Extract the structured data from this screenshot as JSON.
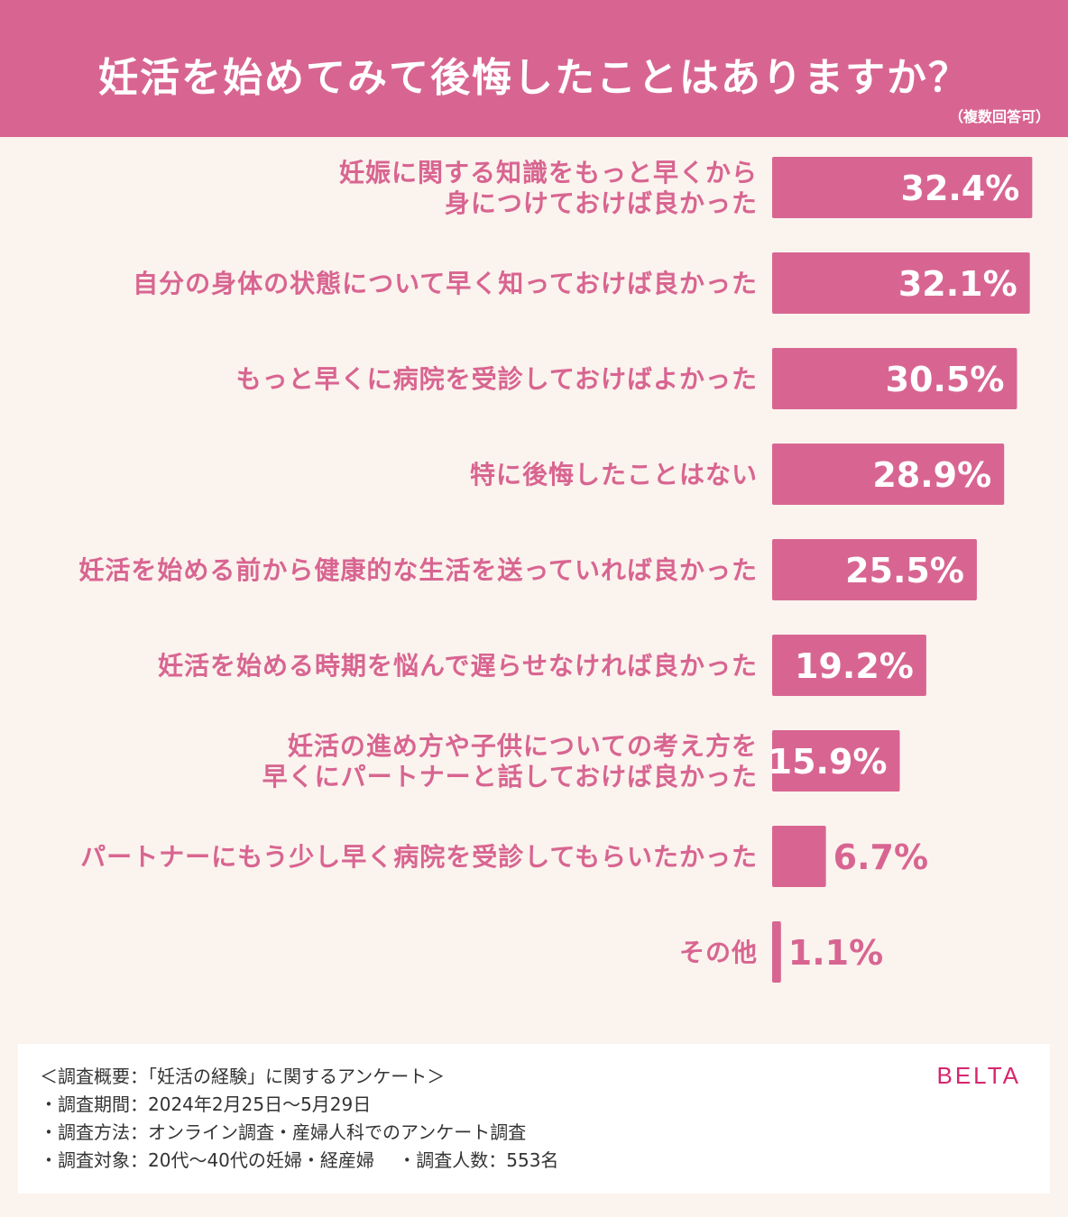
{
  "header": {
    "title": "妊活を始めてみて後悔したことはありますか？",
    "note": "（複数回答可）"
  },
  "chart_data": {
    "type": "bar",
    "orientation": "horizontal",
    "title": "妊活を始めてみて後悔したことはありますか？",
    "categories": [
      [
        "妊娠に関する知識をもっと早くから",
        "身につけておけば良かった"
      ],
      [
        "自分の身体の状態について早く知っておけば良かった"
      ],
      [
        "もっと早くに病院を受診しておけばよかった"
      ],
      [
        "特に後悔したことはない"
      ],
      [
        "妊活を始める前から健康的な生活を送っていれば良かった"
      ],
      [
        "妊活を始める時期を悩んで遅らせなければ良かった"
      ],
      [
        "妊活の進め方や子供についての考え方を",
        "早くにパートナーと話しておけば良かった"
      ],
      [
        "パートナーにもう少し早く病院を受診してもらいたかった"
      ],
      [
        "その他"
      ]
    ],
    "values": [
      32.4,
      32.1,
      30.5,
      28.9,
      25.5,
      19.2,
      15.9,
      6.7,
      1.1
    ],
    "value_labels": [
      "32.4%",
      "32.1%",
      "30.5%",
      "28.9%",
      "25.5%",
      "19.2%",
      "15.9%",
      "6.7%",
      "1.1%"
    ],
    "unit": "%",
    "bar_color": "#d86591",
    "label_color": "#d86591"
  },
  "survey": {
    "lines": [
      "＜調査概要：「妊活の経験」に関するアンケート＞",
      "・調査期間：2024年2月25日〜5月29日",
      "・調査方法：オンライン調査・産婦人科でのアンケート調査",
      "・調査対象：20代〜40代の妊婦・経産婦　 ・調査人数：553名"
    ],
    "brand": "BELTA"
  }
}
